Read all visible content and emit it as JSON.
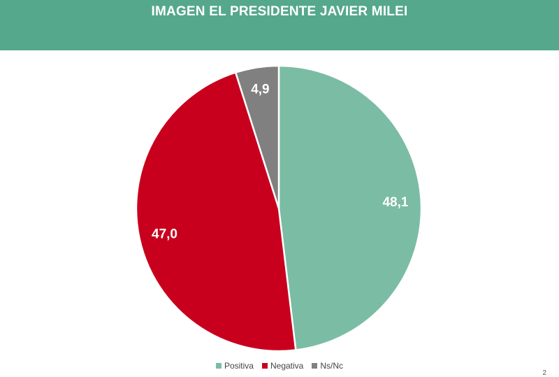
{
  "header": {
    "title": "IMAGEN EL PRESIDENTE JAVIER MILEI",
    "color": "#55a88b"
  },
  "chart_data": {
    "type": "pie",
    "title": "IMAGEN EL PRESIDENTE JAVIER MILEI",
    "slices": [
      {
        "label": "Positiva",
        "value": 48.1,
        "display": "48,1",
        "color": "#7bbca5"
      },
      {
        "label": "Negativa",
        "value": 47.0,
        "display": "47,0",
        "color": "#c8001e"
      },
      {
        "label": "Ns/Nc",
        "value": 4.9,
        "display": "4,9",
        "color": "#808080"
      }
    ],
    "start": "top",
    "direction": "clockwise",
    "legend_position": "bottom"
  },
  "footer": {
    "page_mark": "2"
  }
}
